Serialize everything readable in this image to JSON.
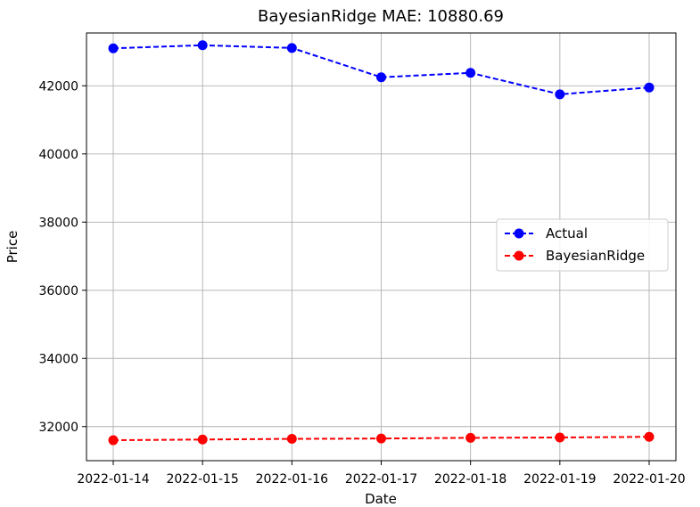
{
  "chart_data": {
    "type": "line",
    "title": "BayesianRidge MAE: 10880.69",
    "xlabel": "Date",
    "ylabel": "Price",
    "x": [
      "2022-01-14",
      "2022-01-15",
      "2022-01-16",
      "2022-01-17",
      "2022-01-18",
      "2022-01-19",
      "2022-01-20"
    ],
    "yticks": [
      32000,
      34000,
      36000,
      38000,
      40000,
      42000
    ],
    "ylim": [
      31000,
      43550
    ],
    "grid": true,
    "legend_position": "center-right",
    "series": [
      {
        "name": "Actual",
        "color": "#0000ff",
        "marker": "circle",
        "linestyle": "dashed",
        "values": [
          43100,
          43190,
          43110,
          42250,
          42380,
          41750,
          41950
        ]
      },
      {
        "name": "BayesianRidge",
        "color": "#ff0000",
        "marker": "circle",
        "linestyle": "dashed",
        "values": [
          31600,
          31620,
          31640,
          31650,
          31670,
          31680,
          31700
        ]
      }
    ]
  }
}
